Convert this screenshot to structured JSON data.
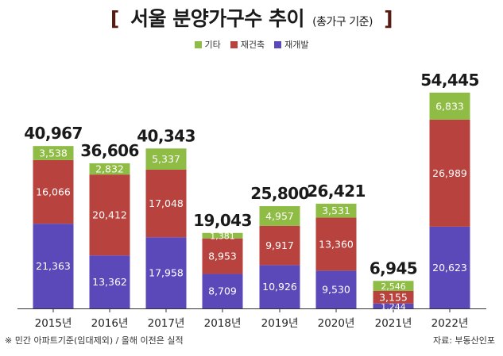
{
  "header": {
    "title_main": "서울 분양가구수 추이",
    "title_sub": "(총가구 기준)",
    "bracket_left": "[",
    "bracket_right": "]"
  },
  "footer": {
    "note": "※ 민간 아파트기준(임대제외) / 올해 이전은 실적",
    "source": "자료: 부동산인포"
  },
  "colors": {
    "기타": "#8fbc45",
    "재건축": "#b8423d",
    "재개발": "#5b49b9"
  },
  "chart_data": {
    "type": "bar",
    "stacked": true,
    "categories": [
      "2015년",
      "2016년",
      "2017년",
      "2018년",
      "2019년",
      "2020년",
      "2021년",
      "2022년"
    ],
    "series": [
      {
        "name": "재개발",
        "values": [
          21363,
          13362,
          17958,
          8709,
          10926,
          9530,
          1244,
          20623
        ]
      },
      {
        "name": "재건축",
        "values": [
          16066,
          20412,
          17048,
          8953,
          9917,
          13360,
          3155,
          26989
        ]
      },
      {
        "name": "기타",
        "values": [
          3538,
          2832,
          5337,
          1381,
          4957,
          3531,
          2546,
          6833
        ]
      }
    ],
    "series_labels": {
      "재개발": [
        "21,363",
        "13,362",
        "17,958",
        "8,709",
        "10,926",
        "9,530",
        "1,244",
        "20,623"
      ],
      "재건축": [
        "16,066",
        "20,412",
        "17,048",
        "8,953",
        "9,917",
        "13,360",
        "3,155",
        "26,989"
      ],
      "기타": [
        "3,538",
        "2,832",
        "5,337",
        "1,381",
        "4,957",
        "3,531",
        "2,546",
        "6,833"
      ]
    },
    "totals": [
      "40,967",
      "36,606",
      "40,343",
      "19,043",
      "25,800",
      "26,421",
      "6,945",
      "54,445"
    ],
    "total_values": [
      40967,
      36606,
      40343,
      19043,
      25800,
      26421,
      6945,
      54445
    ],
    "legend_order": [
      "기타",
      "재건축",
      "재개발"
    ],
    "legend_position": "top-right",
    "ylim": [
      0,
      60000
    ],
    "grid": false
  }
}
